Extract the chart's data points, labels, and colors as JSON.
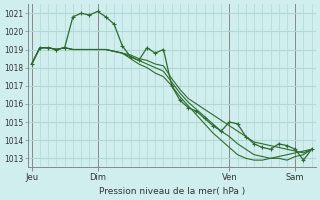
{
  "background_color": "#d0eeee",
  "grid_color": "#b0d8d8",
  "line_color": "#2d6b2d",
  "marker_color": "#2d6b2d",
  "ylabel_ticks": [
    1013,
    1014,
    1015,
    1016,
    1017,
    1018,
    1019,
    1020,
    1021
  ],
  "ymin": 1012.5,
  "ymax": 1021.5,
  "xlabel": "Pression niveau de la mer( hPa )",
  "day_labels": [
    "Jeu",
    "Dim",
    "Ven",
    "Sam"
  ],
  "day_positions": [
    0,
    8,
    24,
    32
  ],
  "series": [
    [
      1018.2,
      1019.1,
      1019.1,
      1019.0,
      1019.1,
      1020.8,
      1021.0,
      1020.9,
      1021.1,
      1020.8,
      1020.4,
      1019.2,
      1018.6,
      1018.4,
      1019.1,
      1018.8,
      1019.0,
      1017.0,
      1016.2,
      1015.8,
      1015.6,
      1015.2,
      1014.8,
      1014.5,
      1015.0,
      1014.9,
      1014.2,
      1013.8,
      1013.6,
      1013.5,
      1013.8,
      1013.7,
      1013.5,
      1012.9,
      1013.5
    ],
    [
      1018.2,
      1019.1,
      1019.1,
      1019.0,
      1019.1,
      1019.0,
      1019.0,
      1019.0,
      1019.0,
      1019.0,
      1018.9,
      1018.8,
      1018.7,
      1018.5,
      1018.4,
      1018.2,
      1018.1,
      1017.4,
      1016.8,
      1016.3,
      1016.0,
      1015.7,
      1015.4,
      1015.1,
      1014.8,
      1014.5,
      1014.2,
      1013.9,
      1013.8,
      1013.7,
      1013.6,
      1013.5,
      1013.4,
      1013.3,
      1013.5
    ],
    [
      1018.2,
      1019.1,
      1019.1,
      1019.0,
      1019.1,
      1019.0,
      1019.0,
      1019.0,
      1019.0,
      1019.0,
      1018.9,
      1018.8,
      1018.6,
      1018.4,
      1018.2,
      1018.0,
      1017.8,
      1017.2,
      1016.6,
      1016.1,
      1015.7,
      1015.3,
      1014.9,
      1014.5,
      1014.2,
      1013.8,
      1013.5,
      1013.2,
      1013.1,
      1013.0,
      1013.0,
      1012.9,
      1013.1,
      1013.2,
      1013.5
    ],
    [
      1018.2,
      1019.1,
      1019.1,
      1019.0,
      1019.1,
      1019.0,
      1019.0,
      1019.0,
      1019.0,
      1019.0,
      1018.9,
      1018.8,
      1018.5,
      1018.2,
      1018.0,
      1017.7,
      1017.5,
      1017.0,
      1016.4,
      1015.9,
      1015.4,
      1014.9,
      1014.4,
      1014.0,
      1013.6,
      1013.2,
      1013.0,
      1012.9,
      1012.9,
      1013.0,
      1013.1,
      1013.2,
      1013.3,
      1013.4,
      1013.5
    ]
  ]
}
